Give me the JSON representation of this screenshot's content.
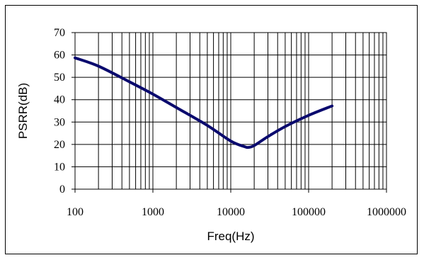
{
  "chart_data": {
    "type": "line",
    "title": "",
    "xlabel": "Freq(Hz)",
    "ylabel": "PSRR(dB)",
    "x_scale": "log",
    "xlim": [
      100,
      1000000
    ],
    "ylim": [
      0,
      70
    ],
    "x_ticks": [
      "100",
      "1000",
      "10000",
      "100000",
      "1000000"
    ],
    "y_ticks": [
      "0",
      "10",
      "20",
      "30",
      "40",
      "50",
      "60",
      "70"
    ],
    "grid": true,
    "legend": "none",
    "series": [
      {
        "color": "#0a0a6e",
        "x": [
          100,
          200,
          500,
          1000,
          2000,
          5000,
          10000,
          15000,
          17000,
          20000,
          30000,
          50000,
          100000,
          200000
        ],
        "y": [
          58.7,
          55.0,
          48.0,
          42.5,
          36.5,
          28.5,
          21.5,
          19.0,
          18.7,
          19.5,
          23.5,
          28.0,
          33.0,
          37.2
        ]
      }
    ]
  }
}
